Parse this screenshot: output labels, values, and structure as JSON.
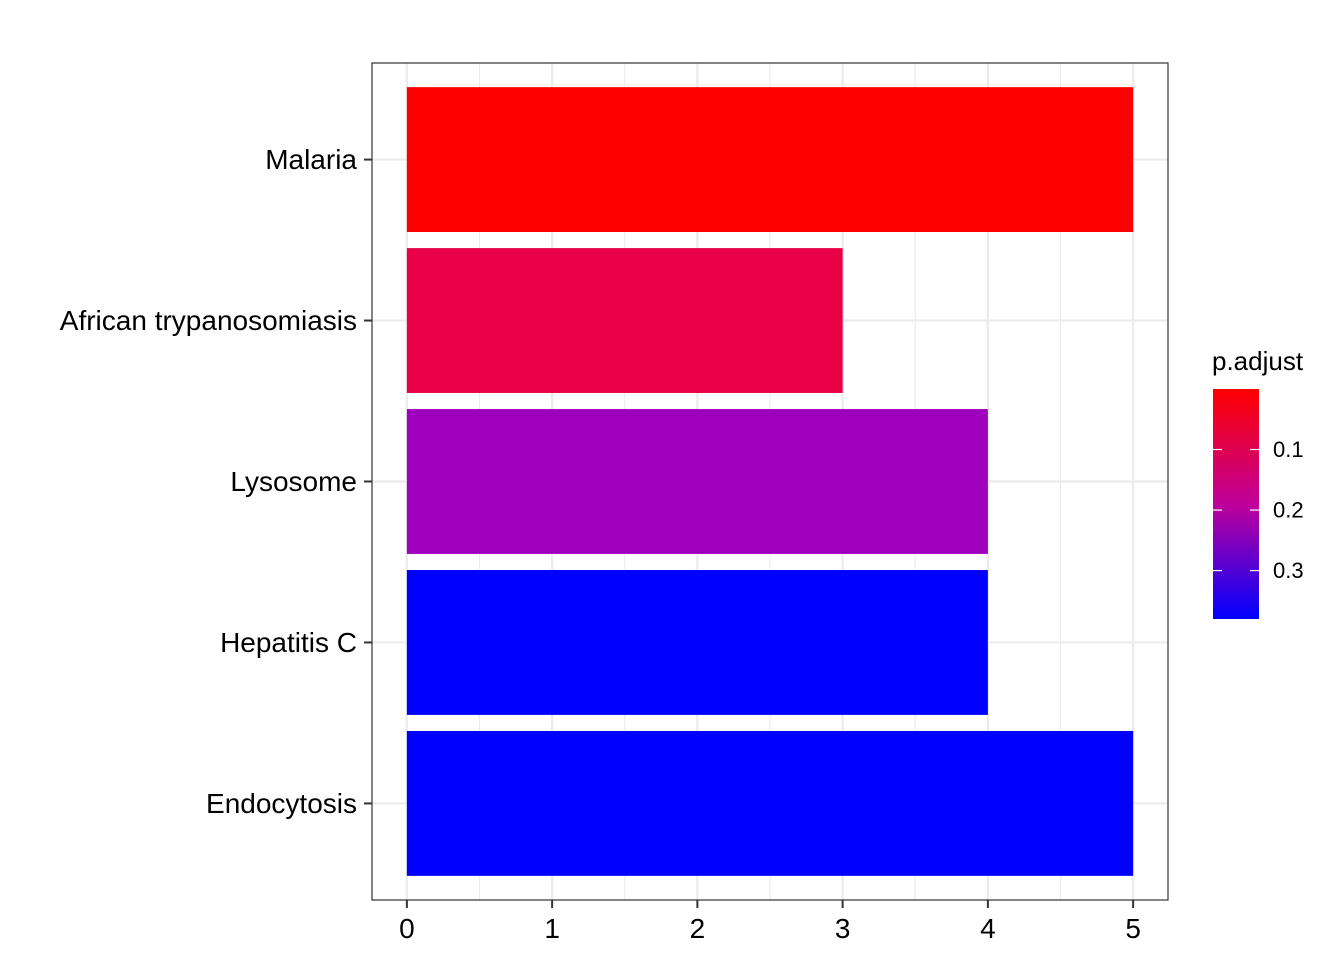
{
  "chart_data": {
    "type": "bar",
    "orientation": "horizontal",
    "categories": [
      "Malaria",
      "African trypanosomiasis",
      "Lysosome",
      "Hepatitis C",
      "Endocytosis"
    ],
    "values": [
      5,
      3,
      4,
      4,
      5
    ],
    "p_adjust": [
      0.0,
      0.07,
      0.2,
      0.38,
      0.38
    ],
    "bar_colors": [
      "#FF0000",
      "#EA0045",
      "#9E00BE",
      "#0000FF",
      "#0000FF"
    ],
    "xlim": [
      -0.24,
      5.24
    ],
    "x_ticks": [
      "0",
      "1",
      "2",
      "3",
      "4",
      "5"
    ],
    "grid": true,
    "xlabel": "",
    "ylabel": "",
    "legend": {
      "title": "p.adjust",
      "placement": "right",
      "ticks": [
        {
          "label": "0.1",
          "value": 0.1
        },
        {
          "label": "0.2",
          "value": 0.2
        },
        {
          "label": "0.3",
          "value": 0.3
        }
      ],
      "range": [
        0.0,
        0.38
      ],
      "color_low_value": "#FF0000",
      "color_high_value": "#0000FF"
    }
  }
}
